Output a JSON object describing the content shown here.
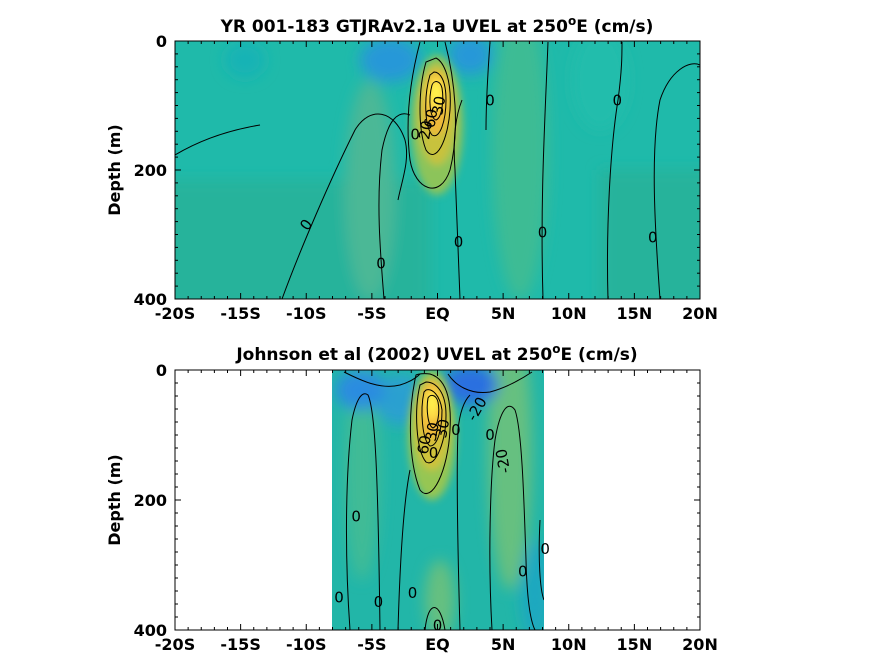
{
  "chart_data": [
    {
      "type": "contour",
      "title_prefix": "YR 001-183 GTJRAv2.1a UVEL at 250",
      "title_sup": "o",
      "title_suffix": "E (cm/s)",
      "ylabel": "Depth (m)",
      "xlim": [
        -20,
        20
      ],
      "ylim": [
        0,
        400
      ],
      "x_ticks": [
        -20,
        -15,
        -10,
        -5,
        0,
        5,
        10,
        15,
        20
      ],
      "x_tick_labels": [
        "-20S",
        "-15S",
        "-10S",
        "-5S",
        "EQ",
        "5N",
        "10N",
        "15N",
        "20N"
      ],
      "y_ticks": [
        0,
        200,
        400
      ],
      "y_tick_labels": [
        "0",
        "200",
        "400"
      ],
      "data_extent_x": [
        -20,
        20
      ],
      "contour_labels": [
        {
          "text": "0",
          "x": -10,
          "y": 285,
          "rot": -55
        },
        {
          "text": "0",
          "x": -4.3,
          "y": 345,
          "rot": 0
        },
        {
          "text": "0",
          "x": 1.6,
          "y": 312,
          "rot": 0
        },
        {
          "text": "0",
          "x": 4.0,
          "y": 92,
          "rot": 0
        },
        {
          "text": "0",
          "x": 8.0,
          "y": 297,
          "rot": 0
        },
        {
          "text": "0",
          "x": 13.7,
          "y": 92,
          "rot": 0
        },
        {
          "text": "0",
          "x": 16.4,
          "y": 305,
          "rot": 0
        },
        {
          "text": "0",
          "x": -1.7,
          "y": 145,
          "rot": 0
        },
        {
          "text": "30",
          "x": 0.1,
          "y": 100,
          "rot": -80
        },
        {
          "text": "60",
          "x": -0.5,
          "y": 120,
          "rot": -80
        },
        {
          "text": "20",
          "x": -0.9,
          "y": 138,
          "rot": -80
        }
      ]
    },
    {
      "type": "contour",
      "title_prefix": "Johnson et al (2002) UVEL at 250",
      "title_sup": "o",
      "title_suffix": "E (cm/s)",
      "ylabel": "Depth (m)",
      "xlim": [
        -20,
        20
      ],
      "ylim": [
        0,
        400
      ],
      "x_ticks": [
        -20,
        -15,
        -10,
        -5,
        0,
        5,
        10,
        15,
        20
      ],
      "x_tick_labels": [
        "-20S",
        "-15S",
        "-10S",
        "-5S",
        "EQ",
        "5N",
        "10N",
        "15N",
        "20N"
      ],
      "y_ticks": [
        0,
        200,
        400
      ],
      "y_tick_labels": [
        "0",
        "200",
        "400"
      ],
      "data_extent_x": [
        -8,
        8.3
      ],
      "contour_labels": [
        {
          "text": "0",
          "x": -6.2,
          "y": 225,
          "rot": 0
        },
        {
          "text": "0",
          "x": -7.5,
          "y": 350,
          "rot": 0
        },
        {
          "text": "0",
          "x": -4.5,
          "y": 357,
          "rot": 0
        },
        {
          "text": "0",
          "x": -1.9,
          "y": 343,
          "rot": 0
        },
        {
          "text": "0",
          "x": 0,
          "y": 393,
          "rot": 0
        },
        {
          "text": "0",
          "x": 1.4,
          "y": 92,
          "rot": 0
        },
        {
          "text": "0",
          "x": 4.0,
          "y": 100,
          "rot": 0
        },
        {
          "text": "0",
          "x": 6.5,
          "y": 310,
          "rot": 0
        },
        {
          "text": "0",
          "x": 8.2,
          "y": 275,
          "rot": 0
        },
        {
          "text": "-20",
          "x": 3.0,
          "y": 60,
          "rot": -60
        },
        {
          "text": "-20",
          "x": 5.0,
          "y": 140,
          "rot": -100
        },
        {
          "text": "30",
          "x": -0.4,
          "y": 95,
          "rot": -80
        },
        {
          "text": "30",
          "x": 0.4,
          "y": 90,
          "rot": -80
        },
        {
          "text": "60",
          "x": -1.0,
          "y": 115,
          "rot": -80
        },
        {
          "text": "0",
          "x": -0.3,
          "y": 128,
          "rot": 0
        }
      ]
    }
  ]
}
